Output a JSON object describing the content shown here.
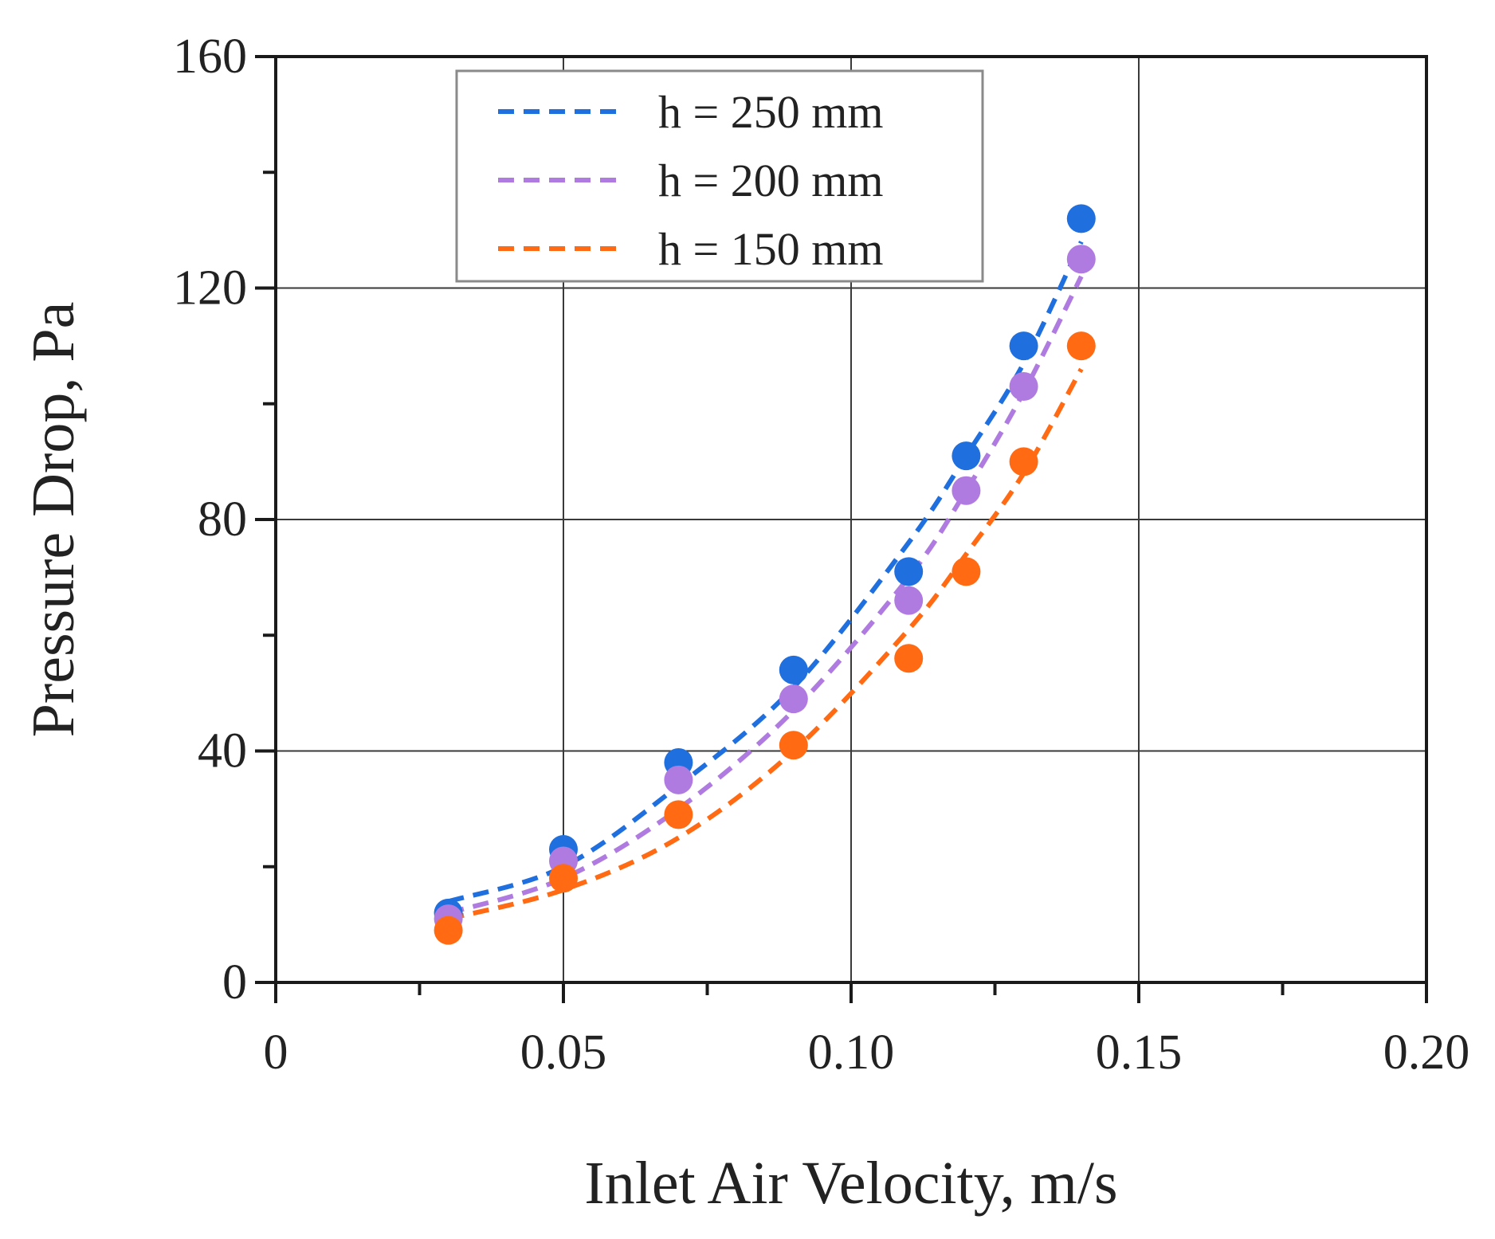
{
  "chart_data": {
    "type": "scatter",
    "title": "",
    "xlabel": "Inlet Air Velocity, m/s",
    "ylabel": "Pressure Drop, Pa",
    "xlim": [
      0,
      0.2
    ],
    "ylim": [
      0,
      160
    ],
    "x_ticks": [
      0,
      0.05,
      0.1,
      0.15,
      0.2
    ],
    "x_tick_labels": [
      "0",
      "0.05",
      "0.10",
      "0.15",
      "0.20"
    ],
    "x_minor_step": 0.025,
    "y_ticks": [
      0,
      40,
      80,
      120,
      160
    ],
    "y_tick_labels": [
      "0",
      "40",
      "80",
      "120",
      "160"
    ],
    "y_minor_step": 20,
    "grid": true,
    "legend_position": "top-left",
    "series": [
      {
        "name": "h = 250 mm",
        "color": "#1f6fdf",
        "x": [
          0.03,
          0.05,
          0.07,
          0.09,
          0.11,
          0.12,
          0.13,
          0.14
        ],
        "y": [
          12,
          23,
          38,
          54,
          71,
          91,
          110,
          132
        ],
        "fit": [
          [
            0.03,
            14
          ],
          [
            0.05,
            20
          ],
          [
            0.07,
            34
          ],
          [
            0.09,
            51
          ],
          [
            0.11,
            76
          ],
          [
            0.12,
            91
          ],
          [
            0.13,
            107
          ],
          [
            0.14,
            128
          ]
        ]
      },
      {
        "name": "h = 200 mm",
        "color": "#b07be0",
        "x": [
          0.03,
          0.05,
          0.07,
          0.09,
          0.11,
          0.12,
          0.13,
          0.14
        ],
        "y": [
          11,
          21,
          35,
          49,
          66,
          85,
          103,
          125
        ],
        "fit": [
          [
            0.03,
            12
          ],
          [
            0.05,
            18
          ],
          [
            0.07,
            30
          ],
          [
            0.09,
            47
          ],
          [
            0.11,
            70
          ],
          [
            0.12,
            85
          ],
          [
            0.13,
            102
          ],
          [
            0.14,
            122
          ]
        ]
      },
      {
        "name": "h = 150 mm",
        "color": "#ff6a13",
        "x": [
          0.03,
          0.05,
          0.07,
          0.09,
          0.11,
          0.12,
          0.13,
          0.14
        ],
        "y": [
          9,
          18,
          29,
          41,
          56,
          71,
          90,
          110
        ],
        "fit": [
          [
            0.03,
            11
          ],
          [
            0.05,
            16
          ],
          [
            0.07,
            25
          ],
          [
            0.09,
            40
          ],
          [
            0.11,
            61
          ],
          [
            0.12,
            74
          ],
          [
            0.13,
            88
          ],
          [
            0.14,
            106
          ]
        ]
      }
    ]
  }
}
